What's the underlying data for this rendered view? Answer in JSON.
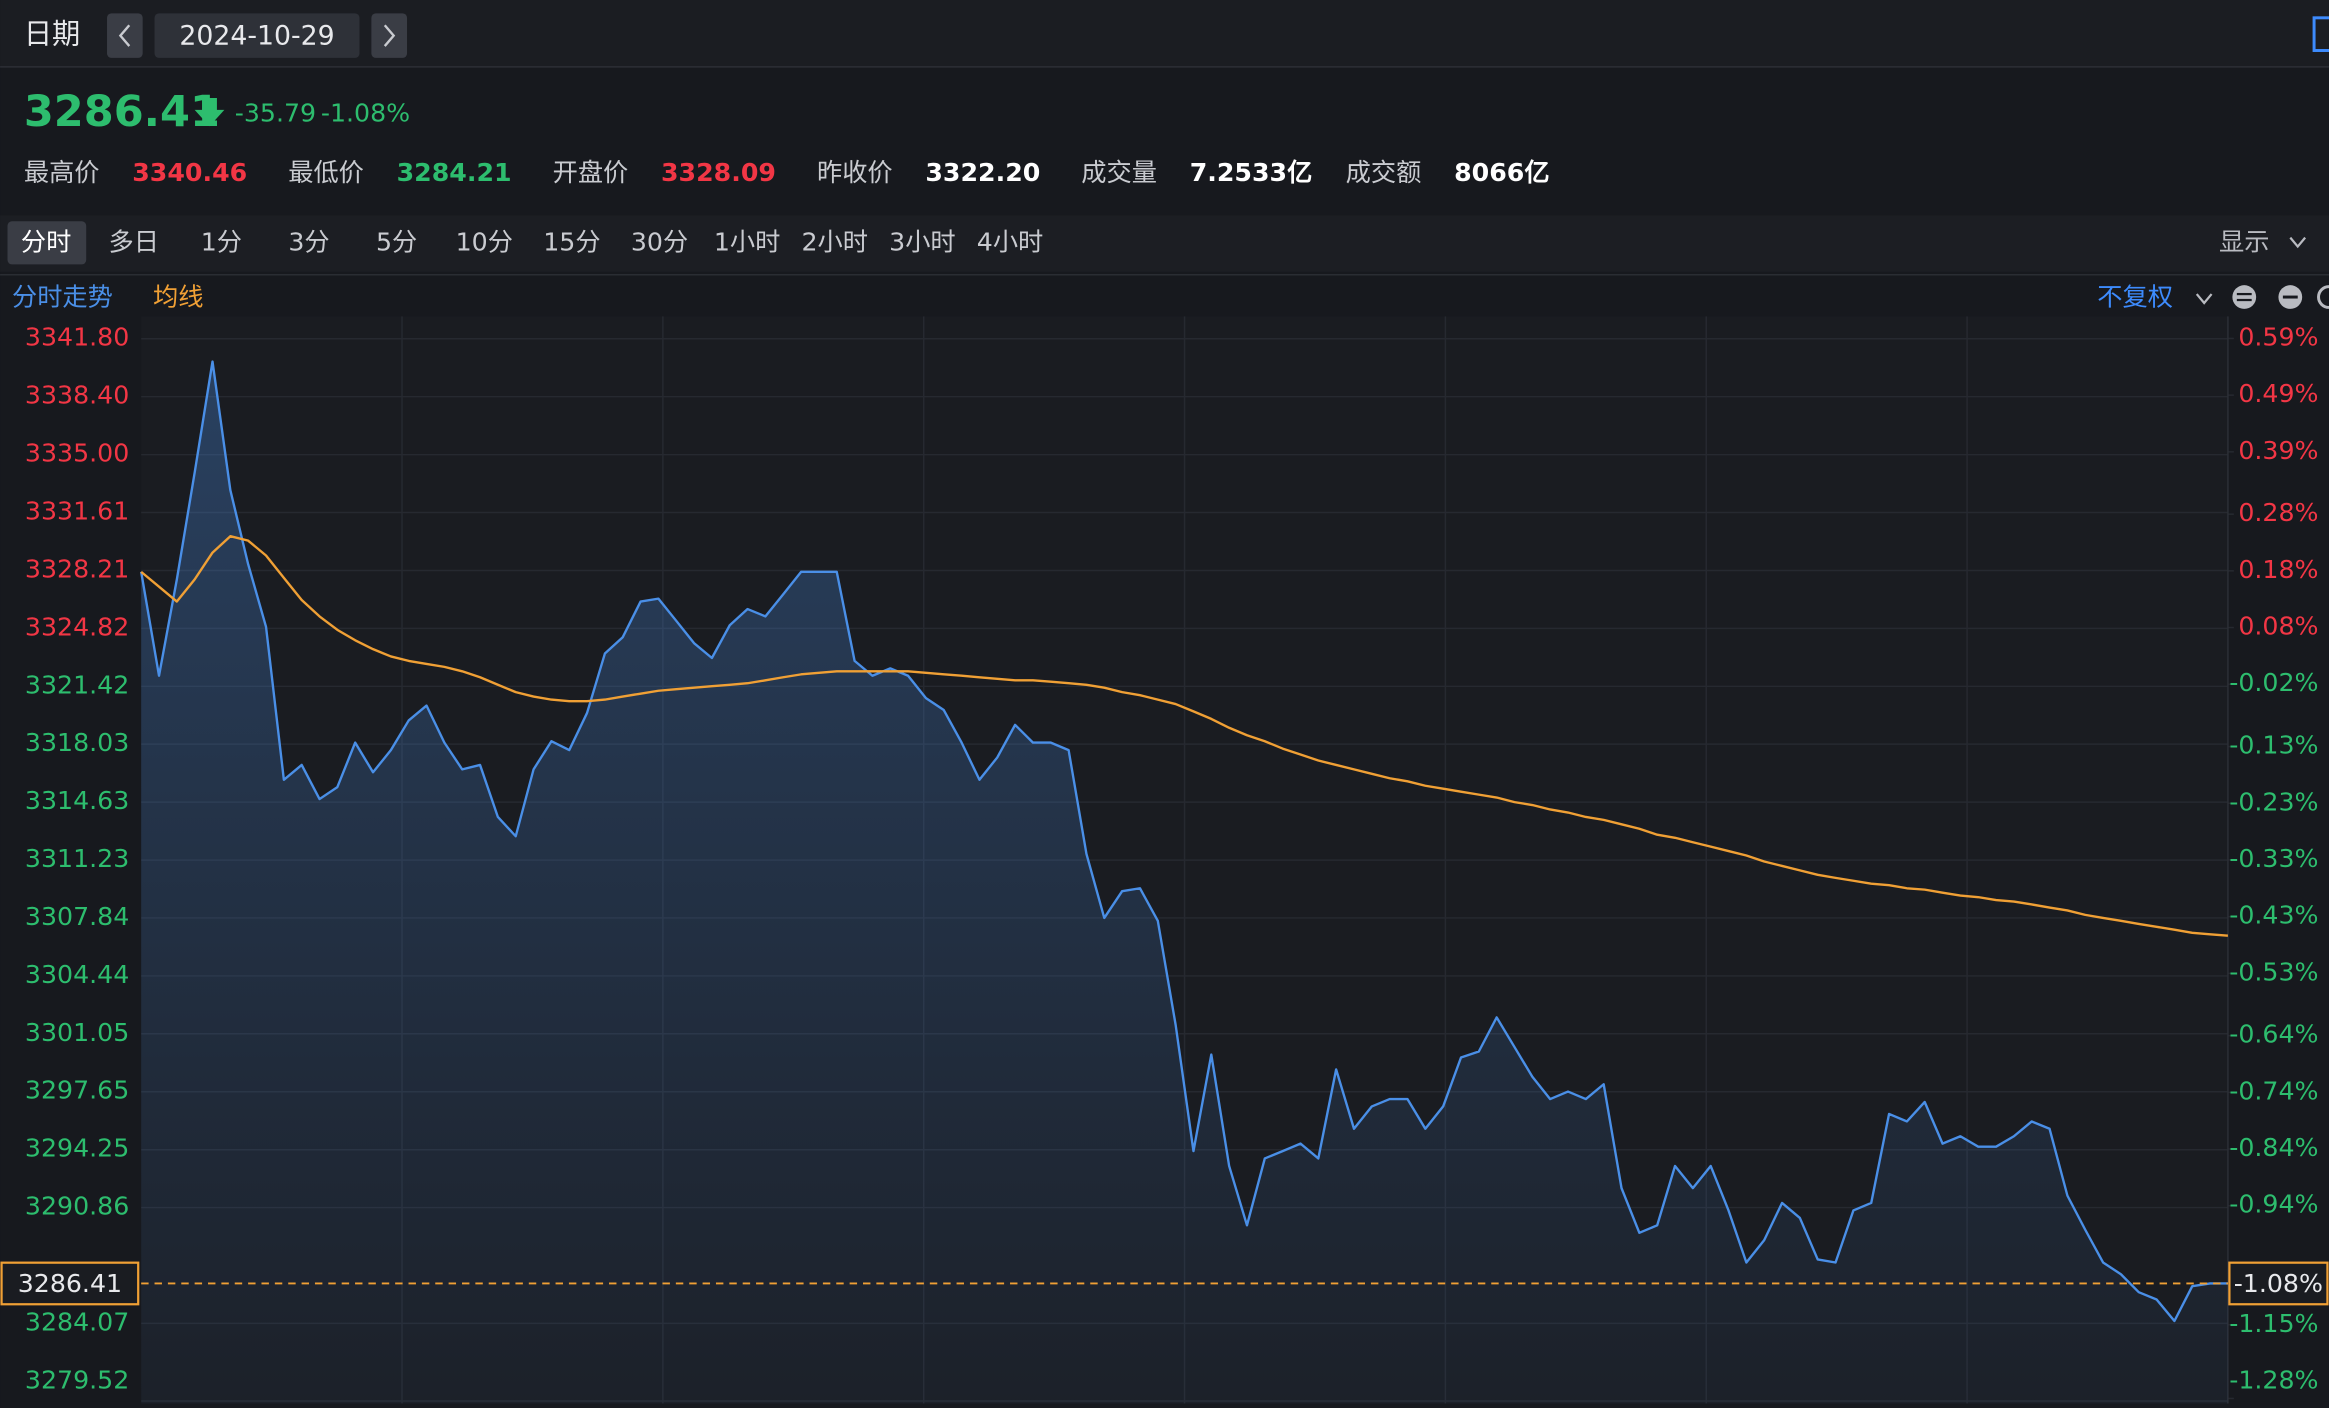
{
  "header": {
    "date_label": "日期",
    "date": "2024-10-29",
    "price": 3286.41,
    "change": -35.79,
    "change_pct": "-1.08%",
    "stats": [
      {
        "label": "最高价",
        "value": "3340.46",
        "color": "#f23645"
      },
      {
        "label": "最低价",
        "value": "3284.21",
        "color": "#2dbd6e"
      },
      {
        "label": "开盘价",
        "value": "3328.09",
        "color": "#f23645"
      },
      {
        "label": "昨收价",
        "value": "3322.20",
        "color": "#ffffff"
      },
      {
        "label": "成交量",
        "value": "7.2533亿",
        "color": "#ffffff"
      },
      {
        "label": "成交额",
        "value": "8066亿",
        "color": "#ffffff"
      }
    ]
  },
  "tabs": [
    "分时",
    "多日",
    "1分",
    "3分",
    "5分",
    "10分",
    "15分",
    "30分",
    "1小时",
    "2小时",
    "3小时",
    "4小时"
  ],
  "display_label": "显示",
  "adjust_label": "不复权",
  "chart_data": {
    "type": "line",
    "series": [
      {
        "name": "分时走势",
        "color": "#4a8fe7",
        "values": [
          3328.13,
          3322.04,
          3327.69,
          3333.96,
          3340.46,
          3332.92,
          3328.57,
          3324.91,
          3315.94,
          3316.81,
          3314.81,
          3315.51,
          3318.12,
          3316.38,
          3317.68,
          3319.42,
          3320.29,
          3318.12,
          3316.55,
          3316.81,
          3313.76,
          3312.63,
          3316.55,
          3318.2,
          3317.68,
          3319.86,
          3323.34,
          3324.3,
          3326.39,
          3326.56,
          3325.26,
          3323.95,
          3323.08,
          3325.0,
          3325.95,
          3325.52,
          3326.82,
          3328.13,
          3328.13,
          3328.13,
          3322.91,
          3322.04,
          3322.47,
          3322.04,
          3320.73,
          3320.03,
          3318.12,
          3315.94,
          3317.25,
          3319.16,
          3318.12,
          3318.12,
          3317.68,
          3311.59,
          3307.84,
          3309.41,
          3309.58,
          3307.67,
          3301.57,
          3294.17,
          3299.83,
          3293.3,
          3289.82,
          3293.74,
          3294.17,
          3294.61,
          3293.74,
          3298.96,
          3295.48,
          3296.79,
          3297.22,
          3297.22,
          3295.48,
          3296.79,
          3299.66,
          3300.01,
          3302.01,
          3300.27,
          3298.53,
          3297.22,
          3297.66,
          3297.22,
          3298.09,
          3292.0,
          3289.38,
          3289.82,
          3293.3,
          3292.0,
          3293.3,
          3290.69,
          3287.64,
          3288.95,
          3291.13,
          3290.25,
          3287.82,
          3287.64,
          3290.69,
          3291.13,
          3296.35,
          3295.91,
          3297.05,
          3294.61,
          3295.04,
          3294.43,
          3294.43,
          3295.04,
          3295.91,
          3295.48,
          3291.56,
          3289.56,
          3287.64,
          3286.95,
          3285.9,
          3285.47,
          3284.21,
          3286.25,
          3286.41,
          3286.41
        ]
      },
      {
        "name": "均线",
        "color": "#f0a035",
        "values": [
          3328.13,
          3327.26,
          3326.39,
          3327.69,
          3329.26,
          3330.22,
          3329.96,
          3329.09,
          3327.78,
          3326.48,
          3325.52,
          3324.73,
          3324.12,
          3323.6,
          3323.17,
          3322.91,
          3322.73,
          3322.56,
          3322.3,
          3321.95,
          3321.51,
          3321.08,
          3320.82,
          3320.64,
          3320.55,
          3320.55,
          3320.64,
          3320.82,
          3320.99,
          3321.16,
          3321.25,
          3321.34,
          3321.43,
          3321.51,
          3321.6,
          3321.77,
          3321.95,
          3322.12,
          3322.21,
          3322.3,
          3322.3,
          3322.3,
          3322.3,
          3322.3,
          3322.21,
          3322.12,
          3322.04,
          3321.95,
          3321.86,
          3321.77,
          3321.77,
          3321.69,
          3321.6,
          3321.51,
          3321.34,
          3321.08,
          3320.9,
          3320.64,
          3320.38,
          3319.95,
          3319.51,
          3318.99,
          3318.55,
          3318.2,
          3317.77,
          3317.42,
          3317.07,
          3316.81,
          3316.55,
          3316.29,
          3316.03,
          3315.85,
          3315.59,
          3315.42,
          3315.24,
          3315.07,
          3314.9,
          3314.63,
          3314.46,
          3314.2,
          3314.02,
          3313.76,
          3313.59,
          3313.33,
          3313.07,
          3312.72,
          3312.54,
          3312.28,
          3312.02,
          3311.76,
          3311.5,
          3311.15,
          3310.89,
          3310.63,
          3310.37,
          3310.19,
          3310.02,
          3309.85,
          3309.76,
          3309.58,
          3309.5,
          3309.32,
          3309.15,
          3309.06,
          3308.89,
          3308.8,
          3308.63,
          3308.45,
          3308.28,
          3308.02,
          3307.84,
          3307.67,
          3307.49,
          3307.32,
          3307.15,
          3306.97,
          3306.88,
          3306.8
        ]
      }
    ],
    "ylim": [
      3279.37,
      3343.11
    ],
    "yticks": [
      {
        "value": 3341.8,
        "label": "3341.80"
      },
      {
        "value": 3338.4,
        "label": "3338.40"
      },
      {
        "value": 3335,
        "label": "3335.00"
      },
      {
        "value": 3331.61,
        "label": "3331.61"
      },
      {
        "value": 3328.21,
        "label": "3328.21"
      },
      {
        "value": 3324.82,
        "label": "3324.82"
      },
      {
        "value": 3321.42,
        "label": "3321.42"
      },
      {
        "value": 3318.03,
        "label": "3318.03"
      },
      {
        "value": 3314.63,
        "label": "3314.63"
      },
      {
        "value": 3311.23,
        "label": "3311.23"
      },
      {
        "value": 3307.84,
        "label": "3307.84"
      },
      {
        "value": 3304.44,
        "label": "3304.44"
      },
      {
        "value": 3301.05,
        "label": "3301.05"
      },
      {
        "value": 3297.65,
        "label": "3297.65"
      },
      {
        "value": 3294.25,
        "label": "3294.25"
      },
      {
        "value": 3290.86,
        "label": "3290.86"
      },
      {
        "value": 3284.07,
        "label": "3284.07"
      },
      {
        "value": 3279.52,
        "label": "3279.52"
      }
    ],
    "y2lim": [
      -1.289,
      0.629
    ],
    "y2ticks": [
      {
        "value": 0.59,
        "label": "0.59%"
      },
      {
        "value": 0.49,
        "label": "0.49%"
      },
      {
        "value": 0.39,
        "label": "0.39%"
      },
      {
        "value": 0.28,
        "label": "0.28%"
      },
      {
        "value": 0.18,
        "label": "0.18%"
      },
      {
        "value": 0.08,
        "label": "0.08%"
      },
      {
        "value": -0.02,
        "label": "-0.02%"
      },
      {
        "value": -0.13,
        "label": "-0.13%"
      },
      {
        "value": -0.23,
        "label": "-0.23%"
      },
      {
        "value": -0.33,
        "label": "-0.33%"
      },
      {
        "value": -0.43,
        "label": "-0.43%"
      },
      {
        "value": -0.53,
        "label": "-0.53%"
      },
      {
        "value": -0.64,
        "label": "-0.64%"
      },
      {
        "value": -0.74,
        "label": "-0.74%"
      },
      {
        "value": -0.84,
        "label": "-0.84%"
      },
      {
        "value": -0.94,
        "label": "-0.94%"
      },
      {
        "value": -1.15,
        "label": "-1.15%"
      },
      {
        "value": -1.28,
        "label": "-1.28%"
      }
    ],
    "grid": true
  }
}
